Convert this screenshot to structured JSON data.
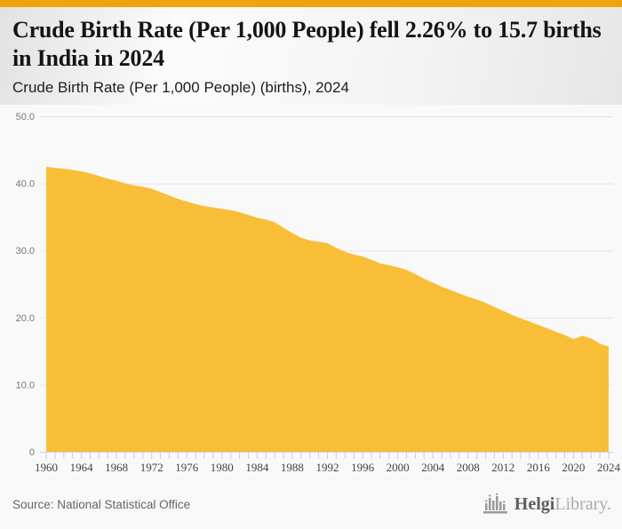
{
  "colors": {
    "top_bar": "#F0A30C",
    "area_fill": "#F9BE37",
    "gridline": "#e4e4e4",
    "axis_line": "#ccd5df",
    "tick": "#c4cedb"
  },
  "header": {
    "title": "Crude Birth Rate (Per 1,000 People) fell 2.26% to 15.7 births in India in 2024",
    "subtitle": "Crude Birth Rate (Per 1,000 People) (births), 2024"
  },
  "chart_data": {
    "type": "area",
    "title": "Crude Birth Rate (Per 1,000 People) fell 2.26% to 15.7 births in India in 2024",
    "series_name": "Crude Birth Rate (Per 1,000 People) (births)",
    "x": [
      1960,
      1961,
      1962,
      1963,
      1964,
      1965,
      1966,
      1967,
      1968,
      1969,
      1970,
      1971,
      1972,
      1973,
      1974,
      1975,
      1976,
      1977,
      1978,
      1979,
      1980,
      1981,
      1982,
      1983,
      1984,
      1985,
      1986,
      1987,
      1988,
      1989,
      1990,
      1991,
      1992,
      1993,
      1994,
      1995,
      1996,
      1997,
      1998,
      1999,
      2000,
      2001,
      2002,
      2003,
      2004,
      2005,
      2006,
      2007,
      2008,
      2009,
      2010,
      2011,
      2012,
      2013,
      2014,
      2015,
      2016,
      2017,
      2018,
      2019,
      2020,
      2021,
      2022,
      2023,
      2024
    ],
    "values": [
      42.5,
      42.3,
      42.2,
      42.0,
      41.8,
      41.5,
      41.1,
      40.7,
      40.4,
      40.0,
      39.7,
      39.5,
      39.2,
      38.7,
      38.2,
      37.7,
      37.3,
      36.9,
      36.6,
      36.4,
      36.2,
      36.0,
      35.7,
      35.3,
      34.9,
      34.6,
      34.2,
      33.4,
      32.6,
      31.9,
      31.5,
      31.3,
      31.1,
      30.4,
      29.8,
      29.4,
      29.1,
      28.6,
      28.1,
      27.8,
      27.5,
      27.1,
      26.5,
      25.8,
      25.2,
      24.6,
      24.1,
      23.6,
      23.1,
      22.7,
      22.2,
      21.6,
      21.0,
      20.4,
      19.9,
      19.4,
      18.9,
      18.4,
      17.9,
      17.4,
      16.8,
      17.3,
      16.9,
      16.1,
      15.7
    ],
    "xticks": [
      1960,
      1964,
      1968,
      1972,
      1976,
      1980,
      1984,
      1988,
      1992,
      1996,
      2000,
      2004,
      2008,
      2012,
      2016,
      2020,
      2024
    ],
    "yticks": [
      0,
      10,
      20,
      30,
      40,
      50
    ],
    "ytick_labels": [
      "0",
      "10.0",
      "20.0",
      "30.0",
      "40.0",
      "50.0"
    ],
    "ylim": [
      0,
      50
    ],
    "xlabel": "",
    "ylabel": "",
    "grid": true,
    "legend": false
  },
  "footer": {
    "source": "Source: National Statistical Office",
    "logo_bold": "Helgi",
    "logo_light": "Library."
  }
}
